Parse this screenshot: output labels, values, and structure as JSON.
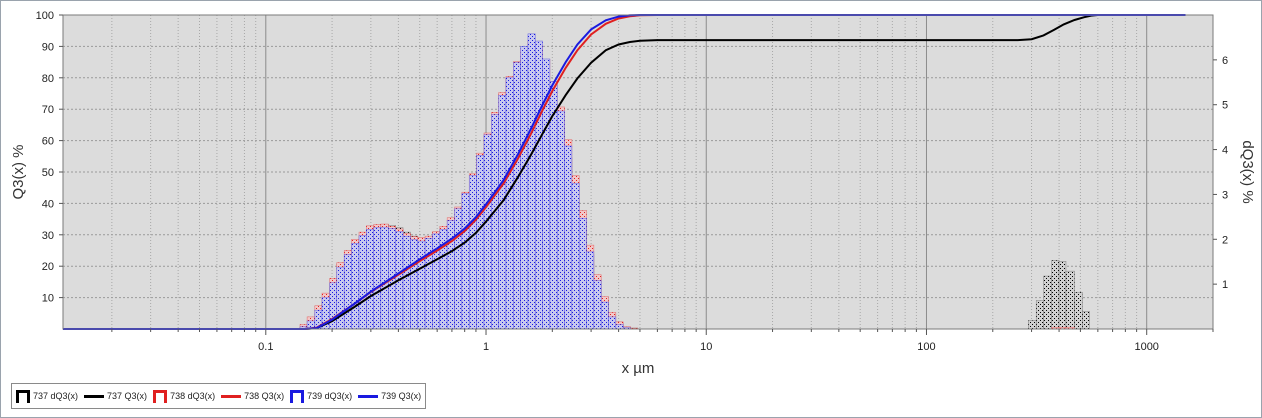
{
  "chart_data": {
    "type": "histogram+line",
    "xlabel": "x µm",
    "ylabel_left": "Q3(x) %",
    "ylabel_right": "dQ3(x) %",
    "x_scale": "log",
    "xlim": [
      0.012,
      2000
    ],
    "ylim_left": [
      0,
      100
    ],
    "ylim_right": [
      0,
      7
    ],
    "x_ticks": [
      0.1,
      1,
      10,
      100,
      1000
    ],
    "x_tick_labels": [
      "0.1",
      "1",
      "10",
      "100",
      "1000"
    ],
    "y_left_ticks": [
      10,
      20,
      30,
      40,
      50,
      60,
      70,
      80,
      90,
      100
    ],
    "y_right_ticks": [
      1,
      2,
      3,
      4,
      5,
      6
    ],
    "grid": true,
    "legend_position": "bottom-left",
    "histograms": [
      {
        "name": "737 dQ3(x)",
        "color": "#000000",
        "fill": "#d0d0d0",
        "bins": [
          [
            0.143,
            0.154,
            0.02
          ],
          [
            0.154,
            0.167,
            0.07
          ],
          [
            0.167,
            0.18,
            0.27
          ],
          [
            0.18,
            0.195,
            0.56
          ],
          [
            0.195,
            0.21,
            0.92
          ],
          [
            0.21,
            0.227,
            1.23
          ],
          [
            0.227,
            0.245,
            1.54
          ],
          [
            0.245,
            0.265,
            1.81
          ],
          [
            0.265,
            0.286,
            1.98
          ],
          [
            0.286,
            0.309,
            2.16
          ],
          [
            0.309,
            0.333,
            2.29
          ],
          [
            0.333,
            0.36,
            2.33
          ],
          [
            0.36,
            0.389,
            2.31
          ],
          [
            0.389,
            0.42,
            2.26
          ],
          [
            0.42,
            0.454,
            2.16
          ],
          [
            0.454,
            0.49,
            2.07
          ],
          [
            0.49,
            0.529,
            2.0
          ],
          [
            0.529,
            0.571,
            1.98
          ],
          [
            0.571,
            0.617,
            2.04
          ],
          [
            0.617,
            0.666,
            2.13
          ],
          [
            0.666,
            0.72,
            2.24
          ],
          [
            0.72,
            0.777,
            2.44
          ],
          [
            0.777,
            0.839,
            2.72
          ],
          [
            0.839,
            0.906,
            3.07
          ],
          [
            0.906,
            0.979,
            3.51
          ],
          [
            0.979,
            1.057,
            3.9
          ],
          [
            1.057,
            1.141,
            4.31
          ],
          [
            1.141,
            1.232,
            4.72
          ],
          [
            1.232,
            1.33,
            5.05
          ],
          [
            1.33,
            1.436,
            5.36
          ],
          [
            1.436,
            1.55,
            5.67
          ],
          [
            1.55,
            1.673,
            5.86
          ],
          [
            1.673,
            1.806,
            5.77
          ],
          [
            1.806,
            1.95,
            5.47
          ],
          [
            1.95,
            2.105,
            5.03
          ],
          [
            2.105,
            2.273,
            4.49
          ],
          [
            2.273,
            2.454,
            3.82
          ],
          [
            2.454,
            2.649,
            3.08
          ],
          [
            2.649,
            2.86,
            2.37
          ],
          [
            2.86,
            3.088,
            1.66
          ],
          [
            3.088,
            3.334,
            1.1
          ],
          [
            3.334,
            3.599,
            0.64
          ],
          [
            3.599,
            3.885,
            0.33
          ],
          [
            3.885,
            4.195,
            0.12
          ],
          [
            4.195,
            4.528,
            0.04
          ],
          [
            4.528,
            4.889,
            0.02
          ],
          [
            290,
            315,
            0.19
          ],
          [
            315,
            340,
            0.63
          ],
          [
            340,
            370,
            1.18
          ],
          [
            370,
            400,
            1.53
          ],
          [
            400,
            430,
            1.51
          ],
          [
            430,
            470,
            1.29
          ],
          [
            470,
            510,
            0.82
          ],
          [
            510,
            550,
            0.39
          ]
        ]
      },
      {
        "name": "738 dQ3(x)",
        "color": "#e02020",
        "fill": "#f2c8c8",
        "bins": [
          [
            0.143,
            0.154,
            0.1
          ],
          [
            0.154,
            0.167,
            0.27
          ],
          [
            0.167,
            0.18,
            0.52
          ],
          [
            0.18,
            0.195,
            0.8
          ],
          [
            0.195,
            0.21,
            1.13
          ],
          [
            0.21,
            0.227,
            1.48
          ],
          [
            0.227,
            0.245,
            1.75
          ],
          [
            0.245,
            0.265,
            2.0
          ],
          [
            0.265,
            0.286,
            2.16
          ],
          [
            0.286,
            0.309,
            2.3
          ],
          [
            0.309,
            0.333,
            2.33
          ],
          [
            0.333,
            0.36,
            2.34
          ],
          [
            0.36,
            0.389,
            2.29
          ],
          [
            0.389,
            0.42,
            2.23
          ],
          [
            0.42,
            0.454,
            2.13
          ],
          [
            0.454,
            0.49,
            2.06
          ],
          [
            0.49,
            0.529,
            2.04
          ],
          [
            0.529,
            0.571,
            2.07
          ],
          [
            0.571,
            0.617,
            2.17
          ],
          [
            0.617,
            0.666,
            2.29
          ],
          [
            0.666,
            0.72,
            2.48
          ],
          [
            0.72,
            0.777,
            2.72
          ],
          [
            0.777,
            0.839,
            3.05
          ],
          [
            0.839,
            0.906,
            3.46
          ],
          [
            0.906,
            0.979,
            3.92
          ],
          [
            0.979,
            1.057,
            4.37
          ],
          [
            1.057,
            1.141,
            4.83
          ],
          [
            1.141,
            1.232,
            5.27
          ],
          [
            1.232,
            1.33,
            5.63
          ],
          [
            1.33,
            1.436,
            5.96
          ],
          [
            1.436,
            1.55,
            6.25
          ],
          [
            1.55,
            1.673,
            6.42
          ],
          [
            1.673,
            1.806,
            6.33
          ],
          [
            1.806,
            1.95,
            6.01
          ],
          [
            1.95,
            2.105,
            5.52
          ],
          [
            2.105,
            2.273,
            4.95
          ],
          [
            2.273,
            2.454,
            4.22
          ],
          [
            2.454,
            2.649,
            3.42
          ],
          [
            2.649,
            2.86,
            2.64
          ],
          [
            2.86,
            3.088,
            1.87
          ],
          [
            3.088,
            3.334,
            1.21
          ],
          [
            3.334,
            3.599,
            0.72
          ],
          [
            3.599,
            3.885,
            0.37
          ],
          [
            3.885,
            4.195,
            0.16
          ],
          [
            4.195,
            4.528,
            0.05
          ],
          [
            4.528,
            4.889,
            0.02
          ],
          [
            370,
            400,
            0.04
          ],
          [
            400,
            430,
            0.04
          ],
          [
            430,
            470,
            0.04
          ]
        ]
      },
      {
        "name": "739 dQ3(x)",
        "color": "#1a1ae0",
        "fill": "#c8c8ee",
        "bins": [
          [
            0.143,
            0.154,
            0.05
          ],
          [
            0.154,
            0.167,
            0.18
          ],
          [
            0.167,
            0.18,
            0.42
          ],
          [
            0.18,
            0.195,
            0.7
          ],
          [
            0.195,
            0.21,
            1.03
          ],
          [
            0.21,
            0.227,
            1.38
          ],
          [
            0.227,
            0.245,
            1.66
          ],
          [
            0.245,
            0.265,
            1.91
          ],
          [
            0.265,
            0.286,
            2.08
          ],
          [
            0.286,
            0.309,
            2.22
          ],
          [
            0.309,
            0.333,
            2.26
          ],
          [
            0.333,
            0.36,
            2.27
          ],
          [
            0.36,
            0.389,
            2.24
          ],
          [
            0.389,
            0.42,
            2.17
          ],
          [
            0.42,
            0.454,
            2.07
          ],
          [
            0.454,
            0.49,
            1.99
          ],
          [
            0.49,
            0.529,
            1.96
          ],
          [
            0.529,
            0.571,
            2.02
          ],
          [
            0.571,
            0.617,
            2.12
          ],
          [
            0.617,
            0.666,
            2.22
          ],
          [
            0.666,
            0.72,
            2.42
          ],
          [
            0.72,
            0.777,
            2.68
          ],
          [
            0.777,
            0.839,
            3.02
          ],
          [
            0.839,
            0.906,
            3.42
          ],
          [
            0.906,
            0.979,
            3.87
          ],
          [
            0.979,
            1.057,
            4.33
          ],
          [
            1.057,
            1.141,
            4.78
          ],
          [
            1.141,
            1.232,
            5.21
          ],
          [
            1.232,
            1.33,
            5.6
          ],
          [
            1.33,
            1.436,
            5.94
          ],
          [
            1.436,
            1.55,
            6.3
          ],
          [
            1.55,
            1.673,
            6.58
          ],
          [
            1.673,
            1.806,
            6.42
          ],
          [
            1.806,
            1.95,
            6.02
          ],
          [
            1.95,
            2.105,
            5.52
          ],
          [
            2.105,
            2.273,
            4.86
          ],
          [
            2.273,
            2.454,
            4.08
          ],
          [
            2.454,
            2.649,
            3.25
          ],
          [
            2.649,
            2.86,
            2.47
          ],
          [
            2.86,
            3.088,
            1.72
          ],
          [
            3.088,
            3.334,
            1.08
          ],
          [
            3.334,
            3.599,
            0.6
          ],
          [
            3.599,
            3.885,
            0.27
          ],
          [
            3.885,
            4.195,
            0.1
          ],
          [
            4.195,
            4.528,
            0.03
          ]
        ]
      }
    ],
    "series": [
      {
        "name": "737 Q3(x)",
        "color": "#000000",
        "points": [
          [
            0.012,
            0
          ],
          [
            0.15,
            0
          ],
          [
            0.17,
            0.3
          ],
          [
            0.2,
            2.5
          ],
          [
            0.25,
            6.8
          ],
          [
            0.3,
            10.5
          ],
          [
            0.4,
            15.5
          ],
          [
            0.5,
            19.2
          ],
          [
            0.6,
            22.2
          ],
          [
            0.7,
            24.8
          ],
          [
            0.8,
            27.5
          ],
          [
            0.9,
            30.6
          ],
          [
            1.0,
            34.2
          ],
          [
            1.2,
            41.0
          ],
          [
            1.4,
            48.5
          ],
          [
            1.6,
            55.5
          ],
          [
            1.8,
            62.0
          ],
          [
            2.0,
            67.8
          ],
          [
            2.3,
            74.5
          ],
          [
            2.6,
            79.8
          ],
          [
            3.0,
            84.8
          ],
          [
            3.5,
            88.8
          ],
          [
            4.0,
            90.6
          ],
          [
            4.5,
            91.4
          ],
          [
            5.0,
            91.8
          ],
          [
            6.0,
            92.0
          ],
          [
            260,
            92.0
          ],
          [
            300,
            92.3
          ],
          [
            340,
            93.5
          ],
          [
            380,
            95.3
          ],
          [
            420,
            97.0
          ],
          [
            470,
            98.4
          ],
          [
            520,
            99.3
          ],
          [
            560,
            99.8
          ],
          [
            600,
            100
          ],
          [
            1500,
            100
          ]
        ]
      },
      {
        "name": "738 Q3(x)",
        "color": "#e02020",
        "points": [
          [
            0.012,
            0
          ],
          [
            0.15,
            0
          ],
          [
            0.17,
            0.4
          ],
          [
            0.2,
            3.2
          ],
          [
            0.25,
            7.8
          ],
          [
            0.3,
            11.8
          ],
          [
            0.4,
            17.3
          ],
          [
            0.5,
            21.6
          ],
          [
            0.6,
            25.0
          ],
          [
            0.7,
            28.0
          ],
          [
            0.8,
            31.2
          ],
          [
            0.9,
            34.8
          ],
          [
            1.0,
            38.8
          ],
          [
            1.2,
            46.3
          ],
          [
            1.4,
            54.4
          ],
          [
            1.6,
            62.2
          ],
          [
            1.8,
            69.5
          ],
          [
            2.0,
            75.8
          ],
          [
            2.3,
            83.2
          ],
          [
            2.6,
            88.8
          ],
          [
            3.0,
            93.8
          ],
          [
            3.5,
            97.2
          ],
          [
            4.0,
            98.9
          ],
          [
            4.5,
            99.6
          ],
          [
            5.0,
            99.9
          ],
          [
            6.0,
            100
          ],
          [
            1500,
            100
          ]
        ]
      },
      {
        "name": "739 Q3(x)",
        "color": "#1a1ae0",
        "points": [
          [
            0.012,
            0
          ],
          [
            0.15,
            0
          ],
          [
            0.17,
            0.3
          ],
          [
            0.2,
            3.0
          ],
          [
            0.25,
            7.8
          ],
          [
            0.3,
            11.9
          ],
          [
            0.4,
            17.7
          ],
          [
            0.5,
            22.2
          ],
          [
            0.6,
            25.7
          ],
          [
            0.7,
            28.8
          ],
          [
            0.8,
            32.0
          ],
          [
            0.9,
            35.6
          ],
          [
            1.0,
            39.7
          ],
          [
            1.2,
            47.4
          ],
          [
            1.4,
            55.8
          ],
          [
            1.6,
            63.8
          ],
          [
            1.8,
            71.2
          ],
          [
            2.0,
            77.6
          ],
          [
            2.3,
            85.0
          ],
          [
            2.6,
            90.6
          ],
          [
            3.0,
            95.4
          ],
          [
            3.5,
            98.3
          ],
          [
            4.0,
            99.5
          ],
          [
            4.5,
            99.9
          ],
          [
            5.0,
            100
          ],
          [
            1500,
            100
          ]
        ]
      }
    ],
    "legend": [
      {
        "label": "737 dQ3(x)",
        "kind": "hist",
        "color": "#000000"
      },
      {
        "label": "737 Q3(x)",
        "kind": "line",
        "color": "#000000"
      },
      {
        "label": "738 dQ3(x)",
        "kind": "hist",
        "color": "#e02020"
      },
      {
        "label": "738 Q3(x)",
        "kind": "line",
        "color": "#e02020"
      },
      {
        "label": "739 dQ3(x)",
        "kind": "hist",
        "color": "#1a1ae0"
      },
      {
        "label": "739 Q3(x)",
        "kind": "line",
        "color": "#1a1ae0"
      }
    ]
  }
}
